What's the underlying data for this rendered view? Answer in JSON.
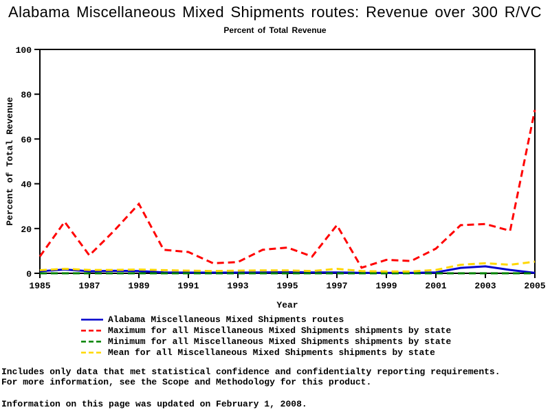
{
  "title": "Alabama Miscellaneous Mixed Shipments routes: Revenue over 300 R/VC",
  "subtitle": "Percent of Total Revenue",
  "chart_data": {
    "type": "line",
    "title": "Alabama Miscellaneous Mixed Shipments routes: Revenue over 300 R/VC",
    "subtitle": "Percent of Total Revenue",
    "xlabel": "Year",
    "ylabel": "Percent of Total Revenue",
    "xlim": [
      1985,
      2005
    ],
    "ylim": [
      0,
      100
    ],
    "x_ticks": [
      1985,
      1987,
      1989,
      1991,
      1993,
      1995,
      1997,
      1999,
      2001,
      2003,
      2005
    ],
    "y_ticks": [
      0,
      20,
      40,
      60,
      80,
      100
    ],
    "grid": false,
    "legend_position": "bottom",
    "x": [
      1985,
      1986,
      1987,
      1988,
      1989,
      1990,
      1991,
      1992,
      1993,
      1994,
      1995,
      1996,
      1997,
      1998,
      1999,
      2000,
      2001,
      2002,
      2003,
      2004,
      2005
    ],
    "series": [
      {
        "name": "Alabama Miscellaneous Mixed Shipments routes",
        "color": "#0000cc",
        "dash": "solid",
        "values": [
          0.9,
          1.7,
          0.9,
          1.1,
          1.0,
          0.4,
          0.3,
          0.3,
          0.3,
          0.4,
          0.5,
          0.4,
          0.4,
          0.2,
          0.2,
          0.2,
          0.4,
          2.4,
          3.1,
          1.5,
          0.2
        ]
      },
      {
        "name": "Maximum for all Miscellaneous Mixed Shipments shipments by state",
        "color": "#ff0000",
        "dash": "dashed",
        "values": [
          7.5,
          23,
          8,
          19,
          31,
          10.5,
          9.5,
          4.5,
          5,
          10.5,
          11.5,
          7.5,
          21.5,
          2.5,
          6,
          5.5,
          11,
          21.5,
          22,
          19,
          73
        ]
      },
      {
        "name": "Minimum for all Miscellaneous Mixed Shipments shipments by state",
        "color": "#008000",
        "dash": "dashed",
        "values": [
          0,
          0,
          0,
          0,
          0,
          0,
          0,
          0,
          0,
          0,
          0,
          0,
          0,
          0,
          0,
          0,
          0,
          0,
          0,
          0,
          0
        ]
      },
      {
        "name": "Mean for all Miscellaneous Mixed Shipments shipments by state",
        "color": "#ffd700",
        "dash": "dashed",
        "values": [
          1.4,
          2.0,
          1.5,
          1.5,
          1.7,
          1.4,
          1.2,
          1.0,
          1.2,
          1.3,
          1.3,
          1.0,
          2.0,
          1.0,
          0.8,
          0.8,
          1.5,
          3.8,
          4.5,
          3.8,
          5.2
        ]
      }
    ]
  },
  "footnotes": {
    "line1": "Includes only data that met statistical confidence and confidentialty reporting requirements.",
    "line2": "For more information, see the Scope and Methodology for this product.",
    "updated": "Information on this page was updated on February 1, 2008."
  }
}
